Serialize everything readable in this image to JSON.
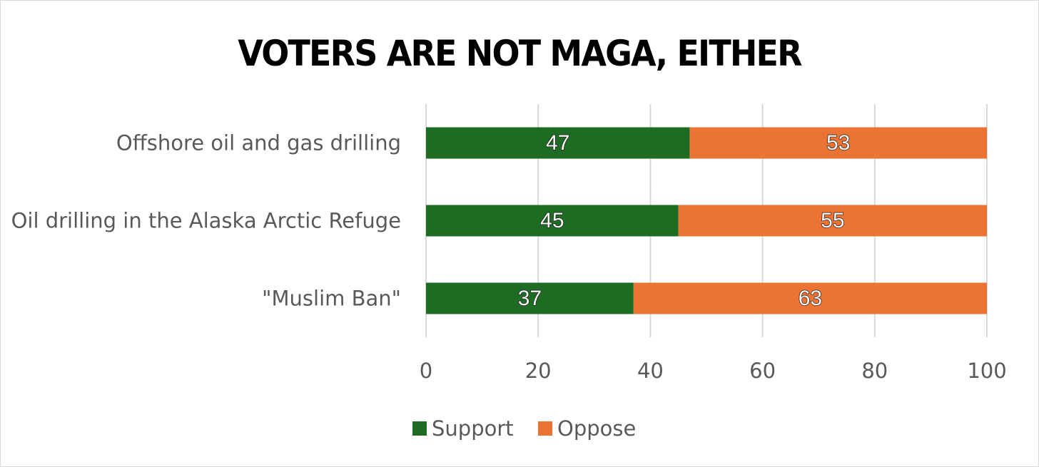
{
  "chart_data": {
    "type": "bar",
    "orientation": "horizontal",
    "stacked": true,
    "title": "VOTERS ARE NOT MAGA, EITHER",
    "categories": [
      "Offshore oil and gas drilling",
      "Oil drilling in the Alaska Arctic Refuge",
      "\"Muslim Ban\""
    ],
    "series": [
      {
        "name": "Support",
        "values": [
          47,
          45,
          37
        ],
        "color": "#1e6b24"
      },
      {
        "name": "Oppose",
        "values": [
          53,
          55,
          63
        ],
        "color": "#eb7333"
      }
    ],
    "xlim": [
      0,
      100
    ],
    "x_ticks": [
      "0",
      "20",
      "40",
      "60",
      "80",
      "100"
    ],
    "xlabel": "",
    "ylabel": "",
    "grid": "vertical",
    "legend": "bottom",
    "data_labels": true
  }
}
